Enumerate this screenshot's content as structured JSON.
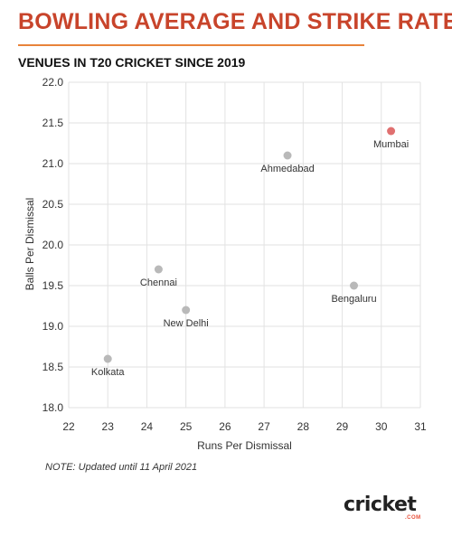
{
  "title": "BOWLING AVERAGE AND STRIKE RATE",
  "subtitle": "VENUES IN T20 CRICKET SINCE 2019",
  "note": "NOTE: Updated until 11 April 2021",
  "logo": {
    "text": "cricket",
    "sub": ".COM"
  },
  "colors": {
    "title": "#c8442b",
    "rule": "#e8833a",
    "point": "#b9b9b9",
    "highlight": "#e07070"
  },
  "chart_data": {
    "type": "scatter",
    "xlabel": "Runs Per Dismissal",
    "ylabel": "Balls Per Dismissal",
    "xlim": [
      22,
      31
    ],
    "ylim": [
      18.0,
      22.0
    ],
    "xticks": [
      "22",
      "23",
      "24",
      "25",
      "26",
      "27",
      "28",
      "29",
      "30",
      "31"
    ],
    "yticks": [
      "18.0",
      "18.5",
      "19.0",
      "19.5",
      "20.0",
      "20.5",
      "21.0",
      "21.5",
      "22.0"
    ],
    "grid": true,
    "points": [
      {
        "label": "Mumbai",
        "x": 30.25,
        "y": 21.4,
        "highlight": true
      },
      {
        "label": "Ahmedabad",
        "x": 27.6,
        "y": 21.1,
        "highlight": false
      },
      {
        "label": "Chennai",
        "x": 24.3,
        "y": 19.7,
        "highlight": false
      },
      {
        "label": "Bengaluru",
        "x": 29.3,
        "y": 19.5,
        "highlight": false
      },
      {
        "label": "New Delhi",
        "x": 25.0,
        "y": 19.2,
        "highlight": false
      },
      {
        "label": "Kolkata",
        "x": 23.0,
        "y": 18.6,
        "highlight": false
      }
    ]
  }
}
